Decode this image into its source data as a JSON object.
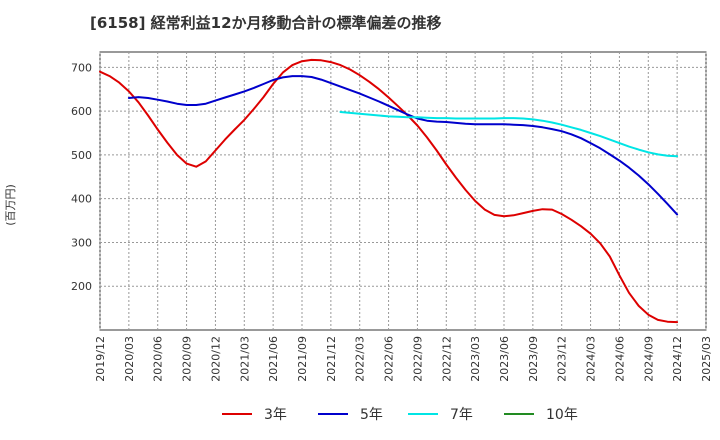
{
  "chart_data": {
    "type": "line",
    "title": "[6158]  経常利益12か月移動合計の標準偏差の推移",
    "ylabel": "(百万円)",
    "xlabel": "",
    "ylim": [
      100,
      735
    ],
    "yticks": [
      200,
      300,
      400,
      500,
      600,
      700
    ],
    "xticks": [
      "2019/12",
      "2020/03",
      "2020/06",
      "2020/09",
      "2020/12",
      "2021/03",
      "2021/06",
      "2021/09",
      "2021/12",
      "2022/03",
      "2022/06",
      "2022/09",
      "2022/12",
      "2023/03",
      "2023/06",
      "2023/09",
      "2023/12",
      "2024/03",
      "2024/06",
      "2024/09",
      "2024/12",
      "2025/03"
    ],
    "grid": true,
    "legend_position": "bottom",
    "series": [
      {
        "name": "3年",
        "color": "#dd0000",
        "x": [
          "2019/12",
          "2020/01",
          "2020/02",
          "2020/03",
          "2020/04",
          "2020/05",
          "2020/06",
          "2020/07",
          "2020/08",
          "2020/09",
          "2020/10",
          "2020/11",
          "2020/12",
          "2021/01",
          "2021/02",
          "2021/03",
          "2021/04",
          "2021/05",
          "2021/06",
          "2021/07",
          "2021/08",
          "2021/09",
          "2021/10",
          "2021/11",
          "2021/12",
          "2022/01",
          "2022/02",
          "2022/03",
          "2022/04",
          "2022/05",
          "2022/06",
          "2022/07",
          "2022/08",
          "2022/09",
          "2022/10",
          "2022/11",
          "2022/12",
          "2023/01",
          "2023/02",
          "2023/03",
          "2023/04",
          "2023/05",
          "2023/06",
          "2023/07",
          "2023/08",
          "2023/09",
          "2023/10",
          "2023/11",
          "2023/12",
          "2024/01",
          "2024/02",
          "2024/03",
          "2024/04",
          "2024/05",
          "2024/06",
          "2024/07",
          "2024/08",
          "2024/09",
          "2024/10",
          "2024/11",
          "2024/12"
        ],
        "values": [
          690,
          680,
          665,
          645,
          620,
          590,
          558,
          528,
          500,
          480,
          473,
          485,
          510,
          535,
          558,
          580,
          605,
          632,
          662,
          688,
          705,
          714,
          717,
          716,
          712,
          705,
          695,
          682,
          667,
          650,
          631,
          611,
          590,
          567,
          540,
          510,
          478,
          448,
          420,
          395,
          375,
          363,
          360,
          362,
          367,
          372,
          376,
          375,
          365,
          352,
          337,
          320,
          298,
          268,
          225,
          185,
          155,
          135,
          123,
          119,
          118
        ]
      },
      {
        "name": "5年",
        "color": "#0000cc",
        "x": [
          "2020/03",
          "2020/04",
          "2020/05",
          "2020/06",
          "2020/07",
          "2020/08",
          "2020/09",
          "2020/10",
          "2020/11",
          "2020/12",
          "2021/01",
          "2021/02",
          "2021/03",
          "2021/04",
          "2021/05",
          "2021/06",
          "2021/07",
          "2021/08",
          "2021/09",
          "2021/10",
          "2021/11",
          "2021/12",
          "2022/01",
          "2022/02",
          "2022/03",
          "2022/04",
          "2022/05",
          "2022/06",
          "2022/07",
          "2022/08",
          "2022/09",
          "2022/10",
          "2022/11",
          "2022/12",
          "2023/01",
          "2023/02",
          "2023/03",
          "2023/04",
          "2023/05",
          "2023/06",
          "2023/07",
          "2023/08",
          "2023/09",
          "2023/10",
          "2023/11",
          "2023/12",
          "2024/01",
          "2024/02",
          "2024/03",
          "2024/04",
          "2024/05",
          "2024/06",
          "2024/07",
          "2024/08",
          "2024/09",
          "2024/10",
          "2024/11",
          "2024/12"
        ],
        "values": [
          630,
          632,
          630,
          626,
          622,
          617,
          614,
          614,
          617,
          624,
          631,
          638,
          645,
          653,
          662,
          671,
          677,
          680,
          680,
          678,
          672,
          664,
          656,
          648,
          640,
          631,
          622,
          612,
          602,
          592,
          583,
          578,
          576,
          575,
          573,
          571,
          570,
          570,
          570,
          570,
          569,
          568,
          566,
          563,
          559,
          554,
          547,
          538,
          527,
          515,
          501,
          487,
          471,
          453,
          433,
          411,
          388,
          364
        ]
      },
      {
        "name": "7年",
        "color": "#00e5e5",
        "x": [
          "2022/01",
          "2022/02",
          "2022/03",
          "2022/04",
          "2022/05",
          "2022/06",
          "2022/07",
          "2022/08",
          "2022/09",
          "2022/10",
          "2022/11",
          "2022/12",
          "2023/01",
          "2023/02",
          "2023/03",
          "2023/04",
          "2023/05",
          "2023/06",
          "2023/07",
          "2023/08",
          "2023/09",
          "2023/10",
          "2023/11",
          "2023/12",
          "2024/01",
          "2024/02",
          "2024/03",
          "2024/04",
          "2024/05",
          "2024/06",
          "2024/07",
          "2024/08",
          "2024/09",
          "2024/10",
          "2024/11",
          "2024/12"
        ],
        "values": [
          598,
          596,
          594,
          592,
          590,
          588,
          587,
          586,
          586,
          585,
          584,
          584,
          583,
          583,
          583,
          583,
          583,
          584,
          584,
          583,
          581,
          578,
          574,
          569,
          563,
          557,
          550,
          543,
          535,
          527,
          519,
          512,
          506,
          501,
          498,
          497
        ]
      },
      {
        "name": "10年",
        "color": "#228b22",
        "x": [],
        "values": []
      }
    ]
  }
}
